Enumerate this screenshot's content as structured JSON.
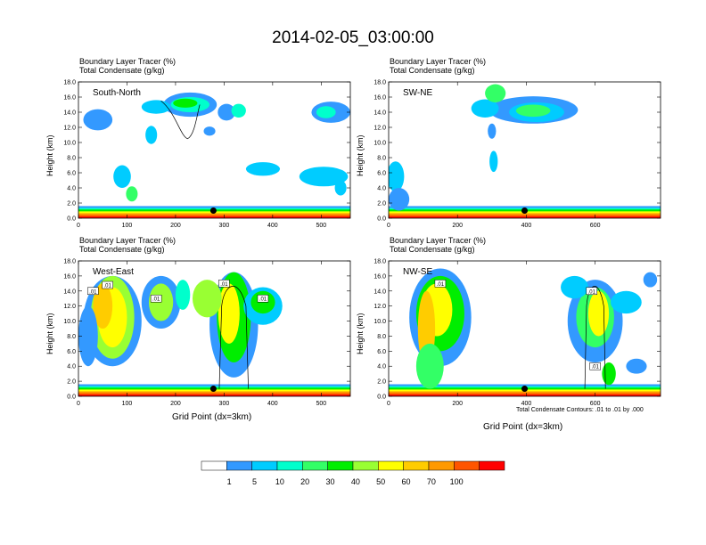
{
  "figure": {
    "title": "2014-02-05_03:00:00",
    "colorbar": {
      "colors": [
        "#ffffff",
        "#3399ff",
        "#00ccff",
        "#00ffcc",
        "#33ff66",
        "#00ee00",
        "#99ff33",
        "#ffff00",
        "#ffcc00",
        "#ff9900",
        "#ff5500",
        "#ff0000"
      ],
      "labels": [
        "1",
        "5",
        "10",
        "20",
        "30",
        "40",
        "50",
        "60",
        "70",
        "100"
      ]
    },
    "contour_note": "Total Condensate Contours: .01 to .01 by .000"
  },
  "panels": [
    {
      "line1": "Boundary Layer Tracer   (%)",
      "line2": "Total Condensate   (g/kg)",
      "section_label": "South-North",
      "ylabel": "Height (km)",
      "xlabel": "",
      "xticks": [
        "0",
        "100",
        "200",
        "300",
        "400",
        "500"
      ]
    },
    {
      "line1": "Boundary Layer Tracer   (%)",
      "line2": "Total Condensate   (g/kg)",
      "section_label": "SW-NE",
      "ylabel": "Height (km)",
      "xlabel": "",
      "xticks": [
        "0",
        "200",
        "400",
        "600"
      ]
    },
    {
      "line1": "Boundary Layer Tracer   (%)",
      "line2": "Total Condensate   (g/kg)",
      "section_label": "West-East",
      "ylabel": "Height (km)",
      "xlabel": "Grid Point (dx=3km)",
      "xticks": [
        "0",
        "100",
        "200",
        "300",
        "400",
        "500"
      ]
    },
    {
      "line1": "Boundary Layer Tracer   (%)",
      "line2": "Total Condensate   (g/kg)",
      "section_label": "NW-SE",
      "ylabel": "Height (km)",
      "xlabel": "Grid Point (dx=3km)",
      "xticks": [
        "0",
        "200",
        "400",
        "600"
      ]
    }
  ],
  "yticks": [
    "0.0",
    "2.0",
    "4.0",
    "6.0",
    "8.0",
    "10.0",
    "12.0",
    "14.0",
    "16.0",
    "18.0"
  ],
  "chart_data": [
    {
      "type": "heatmap",
      "title": "South-North",
      "xlabel": "",
      "ylabel": "Height (km)",
      "xlim": [
        0,
        560
      ],
      "ylim": [
        0,
        18
      ],
      "levels": [
        1,
        5,
        10,
        20,
        30,
        40,
        50,
        60,
        70,
        100
      ],
      "marker_point": {
        "x": 278,
        "y": 1.0
      },
      "contour_labels": []
    },
    {
      "type": "heatmap",
      "title": "SW-NE",
      "xlabel": "",
      "ylabel": "Height (km)",
      "xlim": [
        0,
        790
      ],
      "ylim": [
        0,
        18
      ],
      "levels": [
        1,
        5,
        10,
        20,
        30,
        40,
        50,
        60,
        70,
        100
      ],
      "marker_point": {
        "x": 395,
        "y": 1.0
      },
      "contour_labels": []
    },
    {
      "type": "heatmap",
      "title": "West-East",
      "xlabel": "Grid Point (dx=3km)",
      "ylabel": "Height (km)",
      "xlim": [
        0,
        560
      ],
      "ylim": [
        0,
        18
      ],
      "levels": [
        1,
        5,
        10,
        20,
        30,
        40,
        50,
        60,
        70,
        100
      ],
      "marker_point": {
        "x": 278,
        "y": 1.0
      },
      "contour_labels": [
        ".01",
        ".01",
        ".01",
        ".01",
        ".01"
      ]
    },
    {
      "type": "heatmap",
      "title": "NW-SE",
      "xlabel": "Grid Point (dx=3km)",
      "ylabel": "Height (km)",
      "xlim": [
        0,
        790
      ],
      "ylim": [
        0,
        18
      ],
      "levels": [
        1,
        5,
        10,
        20,
        30,
        40,
        50,
        60,
        70,
        100
      ],
      "marker_point": {
        "x": 395,
        "y": 1.0
      },
      "contour_labels": [
        ".01",
        ".01",
        ".01"
      ]
    }
  ]
}
